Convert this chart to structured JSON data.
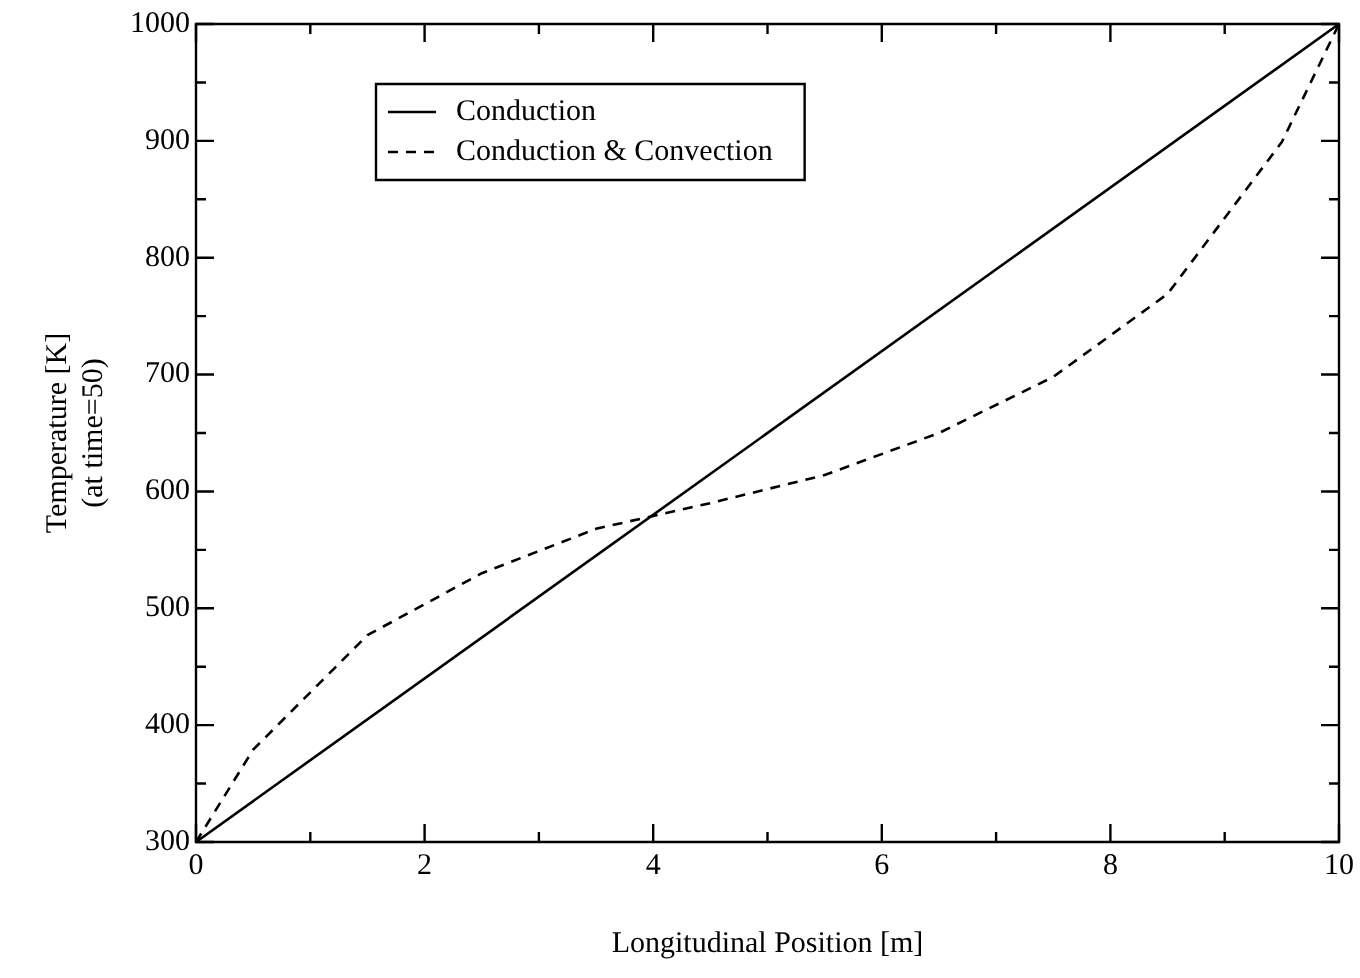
{
  "chart_data": {
    "type": "line",
    "xlabel": "Longitudinal Position [m]",
    "ylabel": "Temperature [K]\n(at time=50)",
    "xlim": [
      0,
      10
    ],
    "ylim": [
      300,
      1000
    ],
    "xticks": [
      0,
      {
        "value": 1,
        "label": null
      },
      2,
      {
        "value": 3,
        "label": null
      },
      4,
      {
        "value": 5,
        "label": null
      },
      6,
      {
        "value": 7,
        "label": null
      },
      8,
      {
        "value": 9,
        "label": null
      },
      10
    ],
    "yticks": [
      300,
      {
        "value": 350,
        "label": null
      },
      400,
      {
        "value": 450,
        "label": null
      },
      500,
      {
        "value": 550,
        "label": null
      },
      600,
      {
        "value": 650,
        "label": null
      },
      700,
      {
        "value": 750,
        "label": null
      },
      800,
      {
        "value": 850,
        "label": null
      },
      900,
      {
        "value": 950,
        "label": null
      },
      1000
    ],
    "grid": false,
    "legend": "top left",
    "marker": "none",
    "series": [
      {
        "name": "Conduction",
        "color": "#000000",
        "line_style": "solid",
        "x": [
          0,
          10
        ],
        "values": [
          300,
          1000
        ]
      },
      {
        "name": "Conduction & Convection",
        "color": "#000000",
        "line_style": "dashed",
        "x": [
          0,
          0.5,
          1.5,
          2.5,
          3.5,
          4.5,
          5.5,
          6.5,
          7.5,
          8.5,
          9.5,
          10
        ],
        "values": [
          300,
          379,
          477,
          530,
          568,
          590,
          614,
          650,
          698,
          769,
          899,
          1000
        ]
      }
    ]
  }
}
